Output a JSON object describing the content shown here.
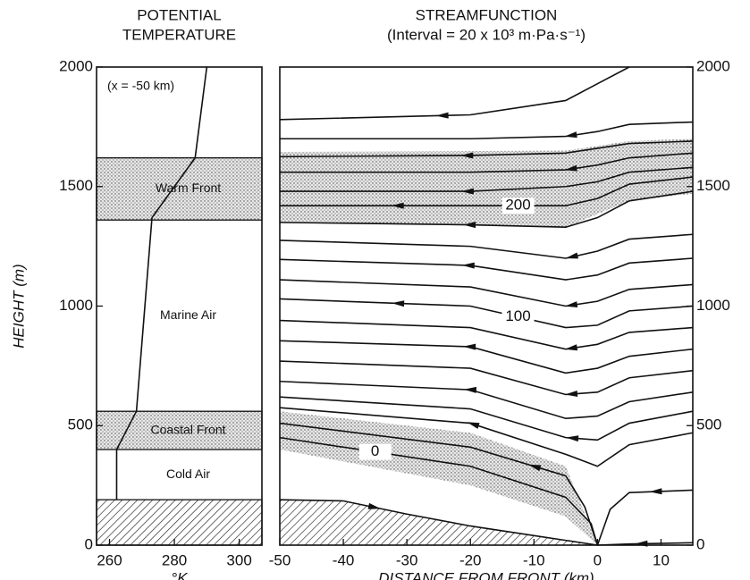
{
  "chart_data": [
    {
      "type": "line",
      "title": [
        "POTENTIAL",
        "TEMPERATURE"
      ],
      "xlabel": "°K",
      "ylabel": "HEIGHT (m)",
      "note": "(x = -50 km)",
      "xlim": [
        256,
        307
      ],
      "xticks": [
        260,
        280,
        300
      ],
      "ylim": [
        0,
        2000
      ],
      "yticks": [
        0,
        500,
        1000,
        1500,
        2000
      ],
      "color": "#111111",
      "series": [
        {
          "x": [
            262.2,
            262.2,
            268.3,
            273.1,
            286.4,
            290
          ],
          "values": [
            190,
            400,
            560,
            1370,
            1620,
            2000
          ]
        }
      ],
      "bands": [
        {
          "bottom": 0,
          "top": 190,
          "fill": "hatch"
        },
        {
          "bottom": 190,
          "top": 400,
          "label": "Cold Air",
          "fill": "none"
        },
        {
          "bottom": 400,
          "top": 560,
          "label": "Coastal Front",
          "fill": "dots"
        },
        {
          "bottom": 560,
          "top": 1360,
          "label": "Marine Air",
          "fill": "none"
        },
        {
          "bottom": 1360,
          "top": 1620,
          "label": "Warm Front",
          "fill": "dots"
        }
      ]
    },
    {
      "type": "line",
      "title": [
        "STREAMFUNCTION"
      ],
      "subtitle": "(Interval = 20 x 10³ m·Pa·s⁻¹)",
      "xlabel": "DISTANCE FROM FRONT (km)",
      "xlim": [
        -50,
        15
      ],
      "xticks": [
        -50,
        -40,
        -30,
        -20,
        -10,
        0,
        10
      ],
      "ylim": [
        0,
        2000
      ],
      "yticks": [
        0,
        500,
        1000,
        1500,
        2000
      ],
      "color": "#111111",
      "bands": [
        {
          "x": [
            -50,
            -5,
            5,
            15
          ],
          "upper": [
            1645,
            1650,
            1690,
            1700
          ],
          "lower": [
            1350,
            1330,
            1440,
            1470
          ],
          "fill": "dots"
        },
        {
          "x": [
            -50,
            -20,
            -5,
            0
          ],
          "upper": [
            560,
            470,
            330,
            0
          ],
          "lower": [
            400,
            250,
            120,
            0
          ],
          "fill": "dots"
        },
        {
          "x": [
            -50,
            -40,
            -30,
            -20,
            -10,
            0
          ],
          "upper": [
            190,
            185,
            130,
            80,
            40,
            0
          ],
          "lower": [
            0,
            0,
            0,
            0,
            0,
            0
          ],
          "fill": "hatch"
        }
      ],
      "series": [
        {
          "x": [
            5,
            0,
            -5,
            -20,
            -50
          ],
          "values": [
            2000,
            1930,
            1860,
            1800,
            1780
          ]
        },
        {
          "x": [
            15,
            5,
            0,
            -5,
            -20,
            -50
          ],
          "values": [
            1770,
            1760,
            1730,
            1710,
            1700,
            1700
          ]
        },
        {
          "x": [
            15,
            5,
            0,
            -5,
            -20,
            -50
          ],
          "values": [
            1690,
            1680,
            1660,
            1640,
            1630,
            1625
          ]
        },
        {
          "x": [
            15,
            5,
            0,
            -5,
            -20,
            -50
          ],
          "values": [
            1640,
            1620,
            1590,
            1570,
            1560,
            1560
          ]
        },
        {
          "x": [
            15,
            5,
            0,
            -5,
            -20,
            -50
          ],
          "values": [
            1580,
            1560,
            1520,
            1500,
            1480,
            1480
          ]
        },
        {
          "x": [
            15,
            5,
            0,
            -5,
            -20,
            -50
          ],
          "values": [
            1540,
            1510,
            1450,
            1420,
            1420,
            1420
          ],
          "label": "200"
        },
        {
          "x": [
            15,
            5,
            0,
            -5,
            -20,
            -50
          ],
          "values": [
            1480,
            1440,
            1370,
            1330,
            1340,
            1350
          ]
        },
        {
          "x": [
            15,
            5,
            0,
            -5,
            -20,
            -50
          ],
          "values": [
            1300,
            1280,
            1230,
            1200,
            1250,
            1275
          ]
        },
        {
          "x": [
            15,
            5,
            0,
            -5,
            -20,
            -50
          ],
          "values": [
            1200,
            1180,
            1130,
            1110,
            1170,
            1195
          ]
        },
        {
          "x": [
            15,
            5,
            0,
            -5,
            -20,
            -50
          ],
          "values": [
            1090,
            1070,
            1020,
            1000,
            1080,
            1110
          ]
        },
        {
          "x": [
            15,
            5,
            0,
            -5,
            -20,
            -50
          ],
          "values": [
            1000,
            980,
            920,
            910,
            1000,
            1030
          ],
          "label": "100"
        },
        {
          "x": [
            15,
            5,
            0,
            -5,
            -20,
            -50
          ],
          "values": [
            910,
            890,
            840,
            820,
            910,
            940
          ]
        },
        {
          "x": [
            15,
            5,
            0,
            -5,
            -20,
            -50
          ],
          "values": [
            820,
            790,
            740,
            720,
            830,
            855
          ]
        },
        {
          "x": [
            15,
            5,
            0,
            -5,
            -20,
            -50
          ],
          "values": [
            730,
            700,
            640,
            630,
            740,
            770
          ]
        },
        {
          "x": [
            15,
            5,
            0,
            -5,
            -20,
            -50
          ],
          "values": [
            640,
            600,
            540,
            530,
            650,
            685
          ]
        },
        {
          "x": [
            15,
            5,
            0,
            -5,
            -20,
            -50
          ],
          "values": [
            560,
            510,
            440,
            450,
            570,
            620
          ]
        },
        {
          "x": [
            15,
            5,
            0,
            -5,
            -20,
            -50
          ],
          "values": [
            470,
            420,
            330,
            380,
            510,
            575
          ]
        },
        {
          "x": [
            15,
            5,
            2,
            0
          ],
          "values": [
            230,
            220,
            150,
            0
          ]
        },
        {
          "x": [
            15,
            5,
            0
          ],
          "values": [
            10,
            5,
            0
          ]
        },
        {
          "x": [
            0,
            -2,
            -5,
            -20,
            -50
          ],
          "values": [
            0,
            160,
            290,
            410,
            510
          ]
        },
        {
          "x": [
            0,
            -1,
            -5,
            -20,
            -50
          ],
          "values": [
            0,
            90,
            200,
            330,
            450
          ],
          "label": "0"
        },
        {
          "x": [
            -50,
            -40,
            -30,
            -20,
            -10,
            0
          ],
          "values": [
            190,
            185,
            130,
            80,
            40,
            0
          ]
        }
      ]
    }
  ]
}
